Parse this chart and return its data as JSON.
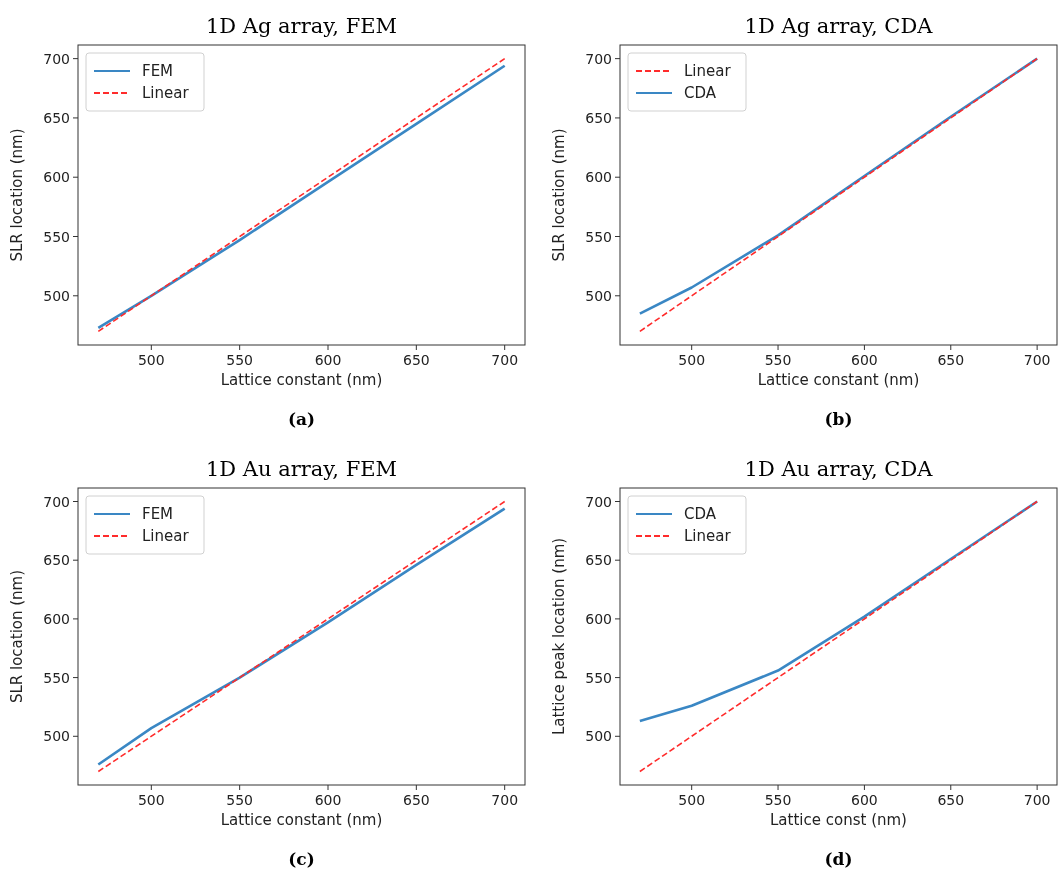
{
  "chart_data": [
    {
      "type": "line",
      "title": "1D Ag array, FEM",
      "xlabel": "Lattice constant (nm)",
      "ylabel": "SLR location (nm)",
      "annotations": [
        "(a)"
      ],
      "xlim": [
        458.5,
        711.5
      ],
      "ylim": [
        458.5,
        711.5
      ],
      "xticks": [
        500,
        550,
        600,
        650,
        700
      ],
      "yticks": [
        500,
        550,
        600,
        650,
        700
      ],
      "legend": "top left",
      "grid": false,
      "series": [
        {
          "name": "FEM",
          "color": "#3a87c4",
          "line_style": "solid",
          "x": [
            470,
            500,
            550,
            600,
            650,
            700
          ],
          "values": [
            473,
            500,
            547,
            596,
            645,
            694
          ]
        },
        {
          "name": "Linear",
          "color": "#ff2b2b",
          "line_style": "dashed",
          "x": [
            470,
            700
          ],
          "values": [
            470,
            700
          ]
        }
      ]
    },
    {
      "type": "line",
      "title": "1D Ag array, CDA",
      "xlabel": "Lattice constant (nm)",
      "ylabel": "SLR location (nm)",
      "annotations": [
        "(b)"
      ],
      "xlim": [
        458.5,
        711.5
      ],
      "ylim": [
        458.5,
        711.5
      ],
      "xticks": [
        500,
        550,
        600,
        650,
        700
      ],
      "yticks": [
        500,
        550,
        600,
        650,
        700
      ],
      "legend": "top left",
      "grid": false,
      "series": [
        {
          "name": "Linear",
          "color": "#ff2b2b",
          "line_style": "dashed",
          "x": [
            470,
            700
          ],
          "values": [
            470,
            700
          ]
        },
        {
          "name": "CDA",
          "color": "#3a87c4",
          "line_style": "solid",
          "x": [
            470,
            500,
            550,
            600,
            650,
            700
          ],
          "values": [
            485,
            507,
            551,
            601,
            651,
            700
          ]
        }
      ]
    },
    {
      "type": "line",
      "title": "1D Au array, FEM",
      "xlabel": "Lattice constant (nm)",
      "ylabel": "SLR location (nm)",
      "annotations": [
        "(c)"
      ],
      "xlim": [
        458.5,
        711.5
      ],
      "ylim": [
        458.5,
        711.5
      ],
      "xticks": [
        500,
        550,
        600,
        650,
        700
      ],
      "yticks": [
        500,
        550,
        600,
        650,
        700
      ],
      "legend": "top left",
      "grid": false,
      "series": [
        {
          "name": "FEM",
          "color": "#3a87c4",
          "line_style": "solid",
          "x": [
            470,
            500,
            550,
            600,
            650,
            700
          ],
          "values": [
            476,
            507,
            550,
            597,
            646,
            694
          ]
        },
        {
          "name": "Linear",
          "color": "#ff2b2b",
          "line_style": "dashed",
          "x": [
            470,
            700
          ],
          "values": [
            470,
            700
          ]
        }
      ]
    },
    {
      "type": "line",
      "title": "1D Au array, CDA",
      "xlabel": "Lattice const (nm)",
      "ylabel": "Lattice peak location (nm)",
      "annotations": [
        "(d)"
      ],
      "xlim": [
        458.5,
        711.5
      ],
      "ylim": [
        458.5,
        711.5
      ],
      "xticks": [
        500,
        550,
        600,
        650,
        700
      ],
      "yticks": [
        500,
        550,
        600,
        650,
        700
      ],
      "legend": "top left",
      "grid": false,
      "series": [
        {
          "name": "CDA",
          "color": "#3a87c4",
          "line_style": "solid",
          "x": [
            470,
            500,
            550,
            600,
            650,
            700
          ],
          "values": [
            513,
            526,
            556,
            602,
            651,
            700
          ]
        },
        {
          "name": "Linear",
          "color": "#ff2b2b",
          "line_style": "dashed",
          "x": [
            470,
            700
          ],
          "values": [
            470,
            700
          ]
        }
      ]
    }
  ]
}
